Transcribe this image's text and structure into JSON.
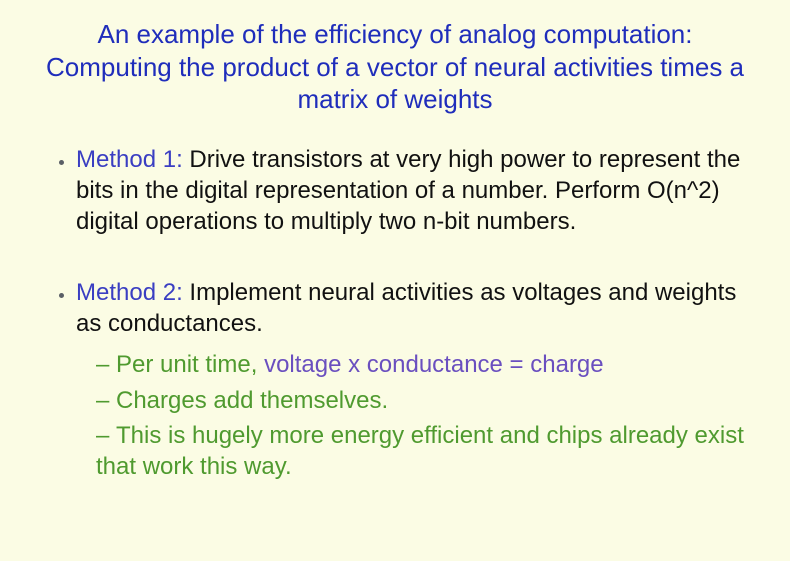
{
  "colors": {
    "background": "#fbfce4",
    "title": "#1f2dbb",
    "body": "#111111",
    "accent_blue": "#3a3ec2",
    "accent_green": "#4f9a2f",
    "accent_purple": "#6a4fbf",
    "bullet": "#5a5f66"
  },
  "fonts": {
    "family": "Arial, Helvetica, sans-serif",
    "title_size_pt": 20,
    "body_size_pt": 18
  },
  "title": "An example of the efficiency of analog computation: Computing the product of a vector of neural activities times a matrix of weights",
  "bullets": [
    {
      "lead": "Method 1:",
      "lead_color": "#3a3ec2",
      "text": " Drive transistors at very high power to represent the bits in the digital representation of a number. Perform O(n^2) digital operations to multiply two n-bit numbers.",
      "sub": []
    },
    {
      "lead": "Method 2:",
      "lead_color": "#3a3ec2",
      "text": " Implement neural activities as voltages and weights as conductances.",
      "sub": [
        {
          "dash_color": "#4f9a2f",
          "segments": [
            {
              "text": "Per unit time, ",
              "color": "#4f9a2f"
            },
            {
              "text": "voltage x conductance = charge",
              "color": "#6a4fbf"
            }
          ]
        },
        {
          "dash_color": "#4f9a2f",
          "segments": [
            {
              "text": "Charges add themselves.",
              "color": "#4f9a2f"
            }
          ]
        },
        {
          "dash_color": "#4f9a2f",
          "segments": [
            {
              "text": "This is hugely more energy efficient and chips already exist that work this way.",
              "color": "#4f9a2f"
            }
          ]
        }
      ]
    }
  ]
}
